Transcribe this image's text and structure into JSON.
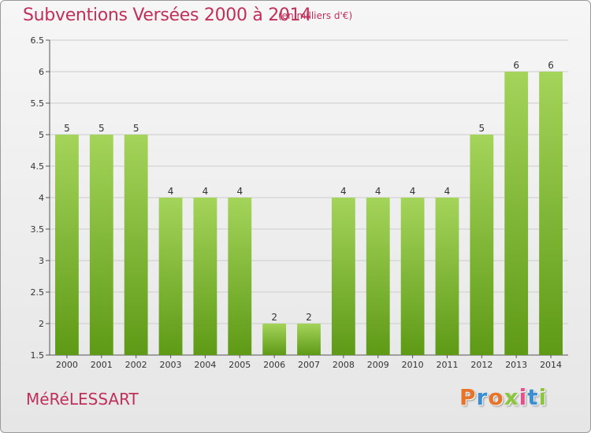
{
  "header": {
    "title": "Subventions Versées 2000 à 2014",
    "subtitle": "(en milliers d'€)"
  },
  "footer": {
    "commune": "MéRéLESSART",
    "logo_text": "Proxiti"
  },
  "colors": {
    "title": "#c0305a",
    "bar_top": "#a4d45a",
    "bar_bottom": "#5e9a16",
    "grid": "#cccccc"
  },
  "chart_data": {
    "type": "bar",
    "title": "Subventions Versées 2000 à 2014",
    "subtitle": "(en milliers d'€)",
    "categories": [
      "2000",
      "2001",
      "2002",
      "2003",
      "2004",
      "2005",
      "2006",
      "2007",
      "2008",
      "2009",
      "2010",
      "2011",
      "2012",
      "2013",
      "2014"
    ],
    "values": [
      5,
      5,
      5,
      4,
      4,
      4,
      2,
      2,
      4,
      4,
      4,
      4,
      5,
      6,
      6
    ],
    "data_labels": [
      "5",
      "5",
      "5",
      "4",
      "4",
      "4",
      "2",
      "2",
      "4",
      "4",
      "4",
      "4",
      "5",
      "6",
      "6"
    ],
    "ylim": [
      1.5,
      6.5
    ],
    "yticks": [
      "1.5",
      "2",
      "2.5",
      "3",
      "3.5",
      "4",
      "4.5",
      "5",
      "5.5",
      "6",
      "6.5"
    ],
    "grid": true,
    "legend": "none"
  }
}
